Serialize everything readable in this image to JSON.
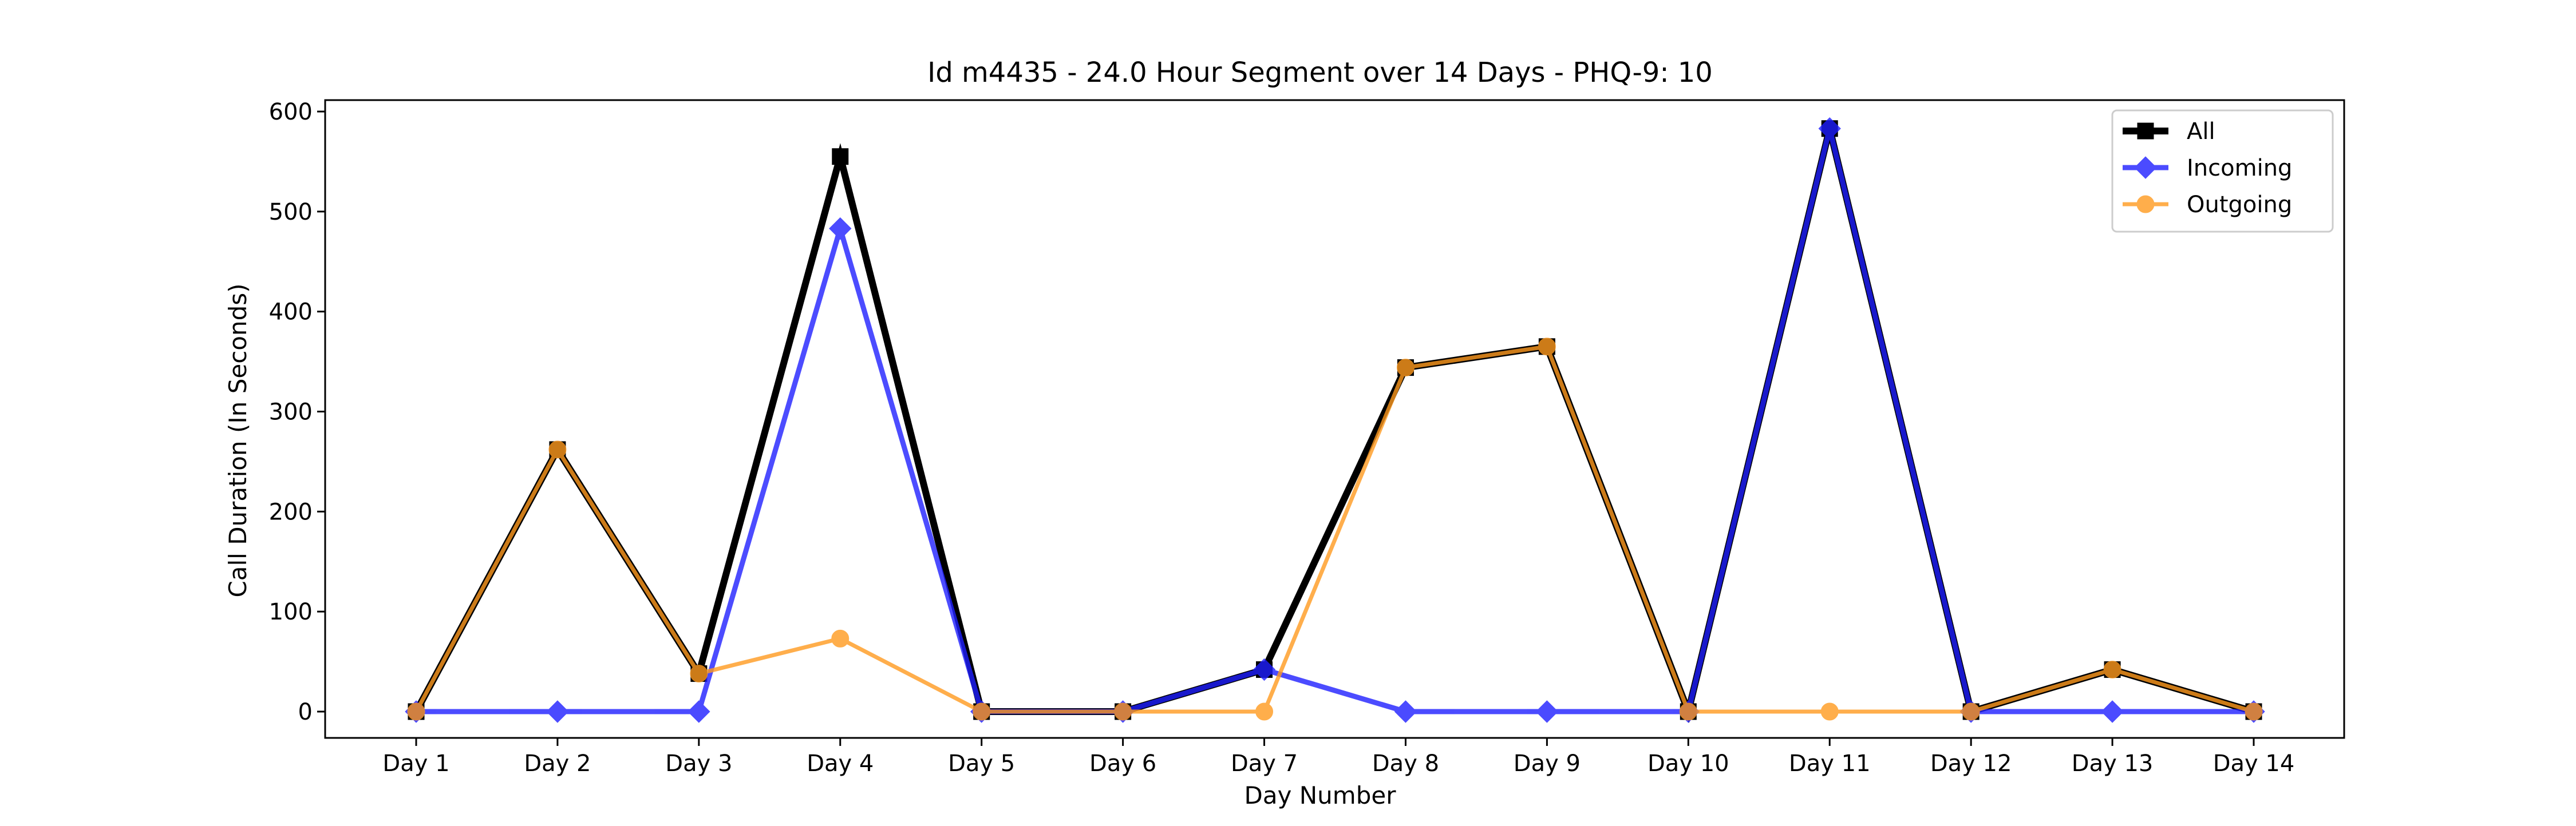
{
  "chart_data": {
    "type": "line",
    "title": "Id m4435 - 24.0 Hour Segment over 14 Days - PHQ-9: 10",
    "xlabel": "Day Number",
    "ylabel": "Call Duration (In Seconds)",
    "categories": [
      "Day 1",
      "Day 2",
      "Day 3",
      "Day 4",
      "Day 5",
      "Day 6",
      "Day 7",
      "Day 8",
      "Day 9",
      "Day 10",
      "Day 11",
      "Day 12",
      "Day 13",
      "Day 14"
    ],
    "ylim": [
      -30,
      615
    ],
    "yticks": [
      0,
      100,
      200,
      300,
      400,
      500,
      600
    ],
    "grid": false,
    "legend_position": "top-right",
    "series": [
      {
        "name": "All",
        "values": [
          0,
          262,
          38,
          555,
          0,
          0,
          42,
          344,
          365,
          0,
          583,
          0,
          42,
          0
        ],
        "color": "#000000",
        "marker": "square"
      },
      {
        "name": "Incoming",
        "values": [
          0,
          0,
          0,
          483,
          0,
          0,
          42,
          0,
          0,
          0,
          583,
          0,
          0,
          0
        ],
        "color": "#1f1fff",
        "marker": "diamond"
      },
      {
        "name": "Outgoing",
        "values": [
          0,
          262,
          38,
          73,
          0,
          0,
          0,
          344,
          365,
          0,
          0,
          0,
          42,
          0
        ],
        "color": "#ff9a1f",
        "marker": "circle"
      }
    ]
  }
}
